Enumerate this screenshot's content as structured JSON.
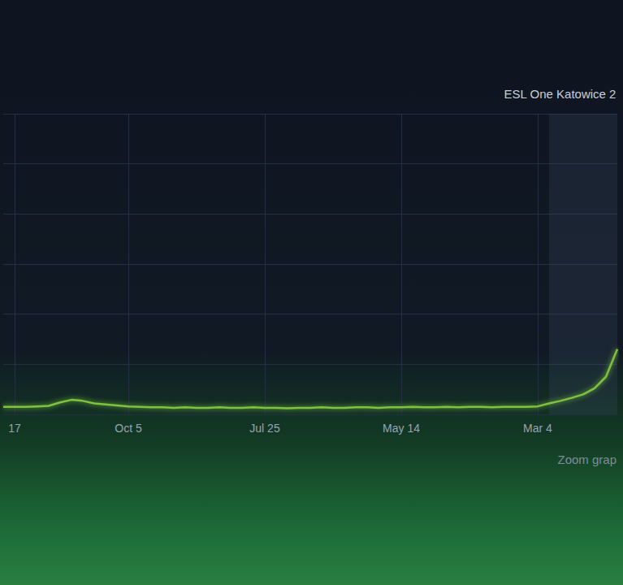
{
  "chart_data": {
    "type": "line",
    "categories": [
      null,
      "17",
      null,
      null,
      null,
      null,
      null,
      null,
      null,
      null,
      null,
      "Oct 5",
      null,
      null,
      null,
      null,
      null,
      null,
      null,
      null,
      null,
      null,
      null,
      "Jul 25",
      null,
      null,
      null,
      null,
      null,
      null,
      null,
      null,
      null,
      null,
      null,
      "May 14",
      null,
      null,
      null,
      null,
      null,
      null,
      null,
      null,
      null,
      null,
      null,
      "Mar 4",
      null,
      null,
      null,
      null,
      null,
      null,
      null
    ],
    "values": [
      0.15,
      0.15,
      0.15,
      0.16,
      0.17,
      0.24,
      0.29,
      0.27,
      0.22,
      0.2,
      0.18,
      0.16,
      0.15,
      0.14,
      0.14,
      0.13,
      0.14,
      0.13,
      0.13,
      0.14,
      0.13,
      0.13,
      0.14,
      0.13,
      0.13,
      0.12,
      0.13,
      0.13,
      0.14,
      0.13,
      0.13,
      0.14,
      0.14,
      0.13,
      0.14,
      0.14,
      0.15,
      0.14,
      0.14,
      0.15,
      0.14,
      0.15,
      0.15,
      0.14,
      0.15,
      0.15,
      0.15,
      0.16,
      0.22,
      0.27,
      0.33,
      0.4,
      0.52,
      0.75,
      1.3
    ],
    "color": "#7ec23e",
    "ylim": [
      0,
      6
    ],
    "yticks": [
      0,
      1,
      2,
      3,
      4,
      5,
      6
    ],
    "grid": true,
    "tick_labels": "x",
    "annotations": [
      "ESL One Katowice 2",
      "Zoom grap"
    ]
  }
}
